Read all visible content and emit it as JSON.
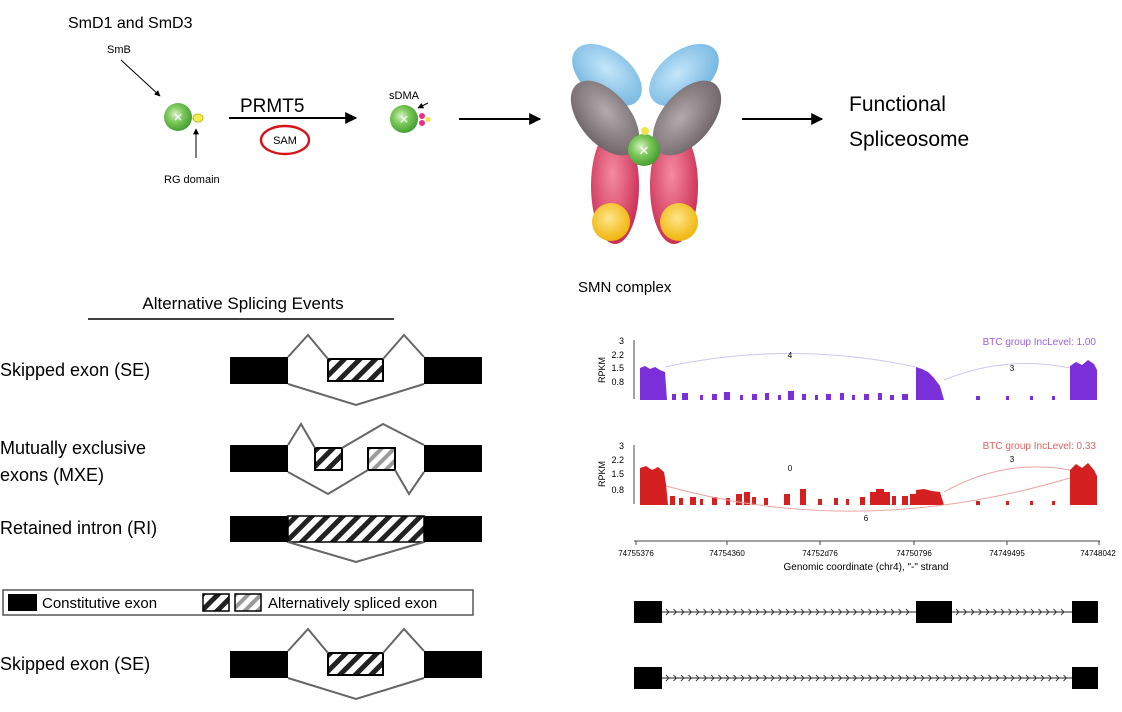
{
  "pathway": {
    "sm_label": "SmD1 and SmD3",
    "smb_label": "SmB",
    "rg_label": "RG domain",
    "enzyme_label": "PRMT5",
    "cofactor_label": "SAM",
    "sdma_label": "sDMA",
    "smn_label": "SMN complex",
    "output_line1": "Functional",
    "output_line2": "Spliceosome",
    "colors": {
      "sm_protein": "#6cc04a",
      "rg_domain": "#e8e23a",
      "sam_circle": "#d8141b",
      "smn_blue": "#8ec8ec",
      "smn_gray": "#8c8285",
      "smn_pink": "#dd3e62",
      "smn_yellow": "#f5c01c"
    }
  },
  "splicing": {
    "title": "Alternative Splicing Events",
    "events": [
      {
        "label": "Skipped exon (SE)"
      },
      {
        "label_line1": "Mutually exclusive",
        "label_line2": "exons (MXE)"
      },
      {
        "label": "Retained intron (RI)"
      }
    ],
    "legend": {
      "constitutive": "Constitutive exon",
      "alternative": "Alternatively spliced exon"
    },
    "bottom_event": {
      "label": "Skipped exon (SE)"
    }
  },
  "sashimi": {
    "ylabel": "RPKM",
    "yticks": [
      "3",
      "2.2",
      "1.5",
      "0.8"
    ],
    "tracks": [
      {
        "annotation": "BTC group IncLevel: 1.00",
        "color": "#7b2fd8",
        "junctions": [
          "4",
          "3"
        ]
      },
      {
        "annotation": "BTC group IncLevel: 0.33",
        "color": "#d42020",
        "junctions": [
          "0",
          "3",
          "6"
        ]
      }
    ],
    "xticks": [
      "74755376",
      "74754360",
      "74752d76",
      "74750796",
      "74749495",
      "74748042"
    ],
    "xlabel": "Genomic coordinate (chr4), \"-\" strand"
  }
}
